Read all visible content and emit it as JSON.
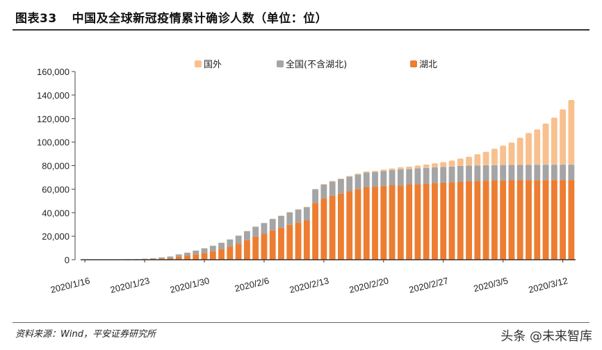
{
  "title": {
    "label": "图表33",
    "text": "中国及全球新冠疫情累计确诊人数（单位：位）"
  },
  "source": "资料来源：Wind，平安证券研究所",
  "watermark": "头条 @未来智库",
  "chart_data": {
    "type": "bar",
    "stacked": true,
    "title": "",
    "xlabel": "",
    "ylabel": "",
    "ylim": [
      0,
      160000
    ],
    "yticks": [
      "0",
      "20,000",
      "40,000",
      "60,000",
      "80,000",
      "100,000",
      "120,000",
      "140,000",
      "160,000"
    ],
    "xtick_labels": [
      "2020/1/16",
      "2020/1/23",
      "2020/1/30",
      "2020/2/6",
      "2020/2/13",
      "2020/2/20",
      "2020/2/27",
      "2020/3/5",
      "2020/3/12"
    ],
    "grid": false,
    "legend_position": "top",
    "categories": [
      "2020/1/16",
      "2020/1/17",
      "2020/1/18",
      "2020/1/19",
      "2020/1/20",
      "2020/1/21",
      "2020/1/22",
      "2020/1/23",
      "2020/1/24",
      "2020/1/25",
      "2020/1/26",
      "2020/1/27",
      "2020/1/28",
      "2020/1/29",
      "2020/1/30",
      "2020/1/31",
      "2020/2/1",
      "2020/2/2",
      "2020/2/3",
      "2020/2/4",
      "2020/2/5",
      "2020/2/6",
      "2020/2/7",
      "2020/2/8",
      "2020/2/9",
      "2020/2/10",
      "2020/2/11",
      "2020/2/12",
      "2020/2/13",
      "2020/2/14",
      "2020/2/15",
      "2020/2/16",
      "2020/2/17",
      "2020/2/18",
      "2020/2/19",
      "2020/2/20",
      "2020/2/21",
      "2020/2/22",
      "2020/2/23",
      "2020/2/24",
      "2020/2/25",
      "2020/2/26",
      "2020/2/27",
      "2020/2/28",
      "2020/2/29",
      "2020/3/1",
      "2020/3/2",
      "2020/3/3",
      "2020/3/4",
      "2020/3/5",
      "2020/3/6",
      "2020/3/7",
      "2020/3/8",
      "2020/3/9",
      "2020/3/10",
      "2020/3/11",
      "2020/3/12",
      "2020/3/13"
    ],
    "series": [
      {
        "name": "湖北",
        "color": "#ED7D31",
        "values": [
          45,
          62,
          121,
          198,
          270,
          375,
          444,
          549,
          729,
          1052,
          1423,
          2714,
          3554,
          4586,
          5806,
          7153,
          9074,
          11177,
          13522,
          16678,
          19665,
          22112,
          24953,
          27100,
          29631,
          31728,
          33366,
          48206,
          51986,
          54406,
          56249,
          58182,
          59989,
          61682,
          62031,
          62662,
          63454,
          63088,
          64084,
          64287,
          64786,
          65187,
          65596,
          65914,
          66337,
          66907,
          67103,
          67217,
          67332,
          67466,
          67592,
          67666,
          67707,
          67743,
          67760,
          67773,
          67781,
          67786
        ]
      },
      {
        "name": "全国(不含湖北)",
        "color": "#A5A5A5",
        "values": [
          0,
          0,
          0,
          0,
          21,
          65,
          127,
          281,
          558,
          923,
          1321,
          1801,
          2420,
          3125,
          3886,
          4638,
          5306,
          6028,
          6916,
          7646,
          8353,
          9049,
          9593,
          10098,
          10540,
          10910,
          11287,
          11598,
          11865,
          12086,
          12251,
          12366,
          12447,
          12503,
          12545,
          12803,
          12834,
          13848,
          13066,
          13371,
          13278,
          13310,
          13228,
          13337,
          13487,
          13119,
          13048,
          13053,
          13077,
          13086,
          13059,
          13029,
          13028,
          13011,
          13018,
          13020,
          13032,
          13038
        ]
      },
      {
        "name": "国外",
        "color": "#F8C08E",
        "values": [
          2,
          3,
          4,
          5,
          6,
          10,
          15,
          20,
          35,
          45,
          55,
          65,
          75,
          90,
          110,
          130,
          140,
          150,
          160,
          180,
          200,
          220,
          260,
          290,
          310,
          320,
          390,
          450,
          470,
          500,
          530,
          650,
          780,
          900,
          1000,
          1150,
          1350,
          1700,
          2050,
          2450,
          2900,
          3500,
          4200,
          5100,
          6200,
          7500,
          9500,
          11500,
          14000,
          16500,
          19000,
          23000,
          27000,
          30000,
          35000,
          40000,
          47000,
          55000
        ]
      }
    ]
  }
}
